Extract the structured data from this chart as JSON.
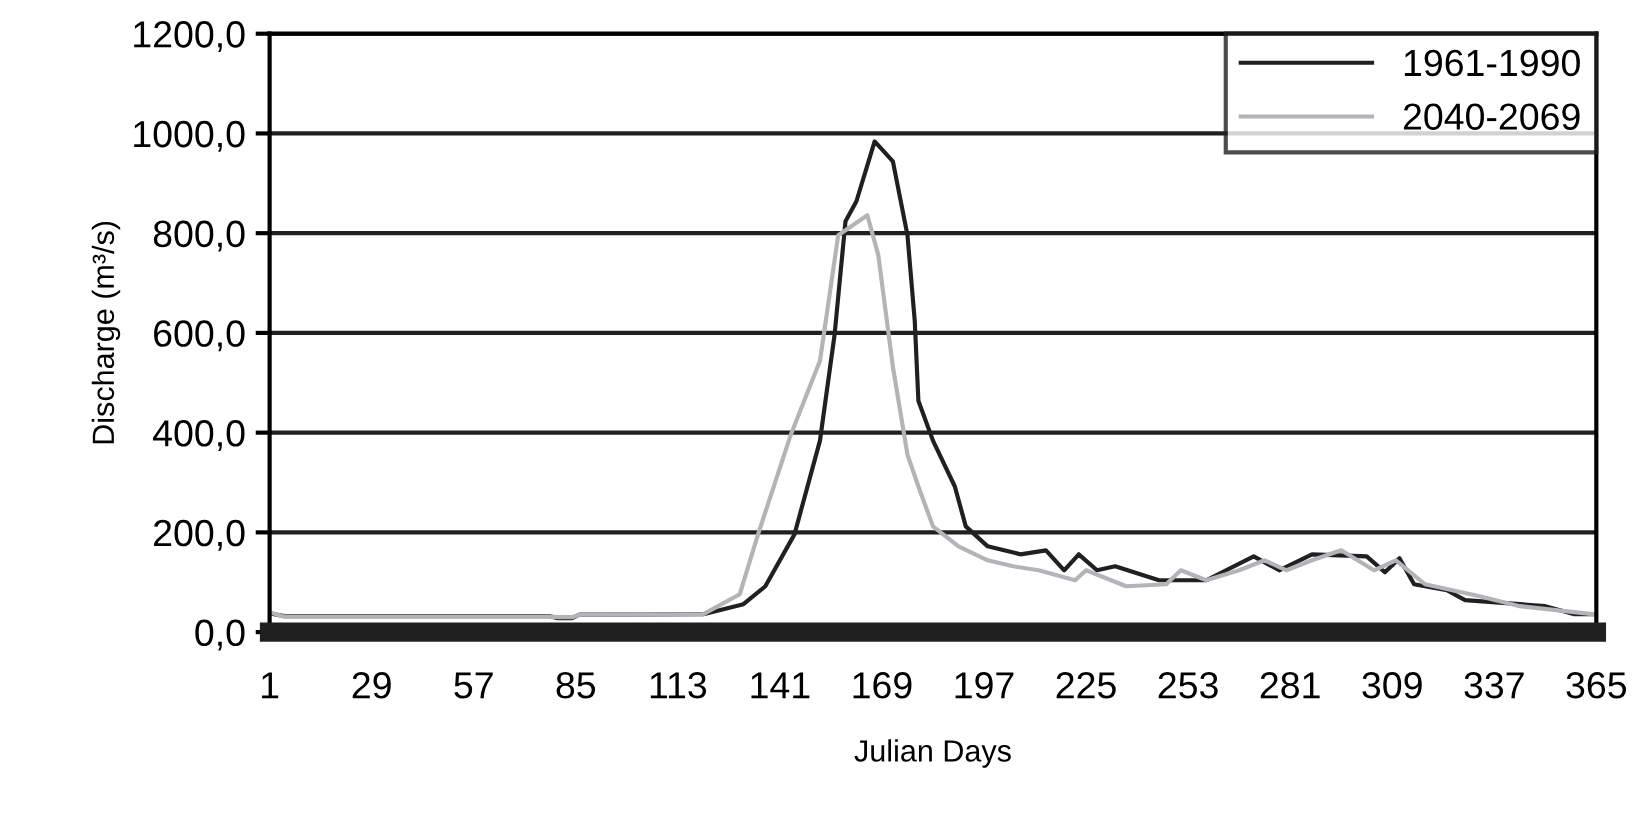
{
  "chart_data": {
    "type": "line",
    "xlabel": "Julian Days",
    "ylabel": "Discharge (m³/s)",
    "xlim": [
      1,
      365
    ],
    "xticks": [
      1,
      29,
      57,
      85,
      113,
      141,
      169,
      197,
      225,
      253,
      281,
      309,
      337,
      365
    ],
    "ylim": [
      0,
      1200
    ],
    "yticks": [
      {
        "value": 0,
        "label": "0,0"
      },
      {
        "value": 200,
        "label": "200,0"
      },
      {
        "value": 400,
        "label": "400,0"
      },
      {
        "value": 600,
        "label": "600,0"
      },
      {
        "value": 800,
        "label": "800,0"
      },
      {
        "value": 1000,
        "label": "1000,0"
      },
      {
        "value": 1200,
        "label": "1200,0"
      }
    ],
    "grid": "y",
    "legend": "top right",
    "marker": "none",
    "line_style": "solid",
    "series": [
      {
        "name": "1961-1990",
        "color": "#202020",
        "x": [
          1,
          5,
          78,
          80,
          84,
          86,
          120,
          131,
          137,
          145,
          152,
          156,
          159,
          162,
          167,
          172,
          176,
          178,
          179,
          183,
          189,
          192,
          198,
          207,
          214,
          219,
          223,
          228,
          233,
          245,
          258,
          271,
          278,
          287,
          302,
          307,
          311,
          315,
          324,
          329,
          344,
          351,
          359,
          364
        ],
        "values": [
          38,
          32,
          32,
          28,
          28,
          35,
          36,
          56,
          92,
          196,
          384,
          596,
          824,
          864,
          984,
          944,
          796,
          624,
          464,
          384,
          292,
          212,
          172,
          156,
          164,
          124,
          156,
          124,
          132,
          104,
          104,
          152,
          124,
          156,
          152,
          120,
          148,
          96,
          84,
          64,
          56,
          52,
          36,
          36
        ]
      },
      {
        "name": "2040-2069",
        "color": "#b4b4b8",
        "x": [
          1,
          5,
          78,
          80,
          84,
          86,
          120,
          130,
          135,
          144,
          152,
          157,
          165,
          168,
          172,
          176,
          179,
          183,
          190,
          198,
          205,
          212,
          222,
          225,
          236,
          247,
          251,
          258,
          267,
          274,
          280,
          287,
          295,
          304,
          310,
          318,
          333,
          344,
          364
        ],
        "values": [
          40,
          31,
          31,
          30,
          30,
          35,
          36,
          76,
          196,
          396,
          544,
          796,
          836,
          756,
          532,
          356,
          292,
          212,
          172,
          144,
          132,
          124,
          104,
          124,
          92,
          96,
          124,
          104,
          124,
          144,
          124,
          144,
          164,
          124,
          144,
          96,
          72,
          52,
          36
        ]
      }
    ]
  }
}
